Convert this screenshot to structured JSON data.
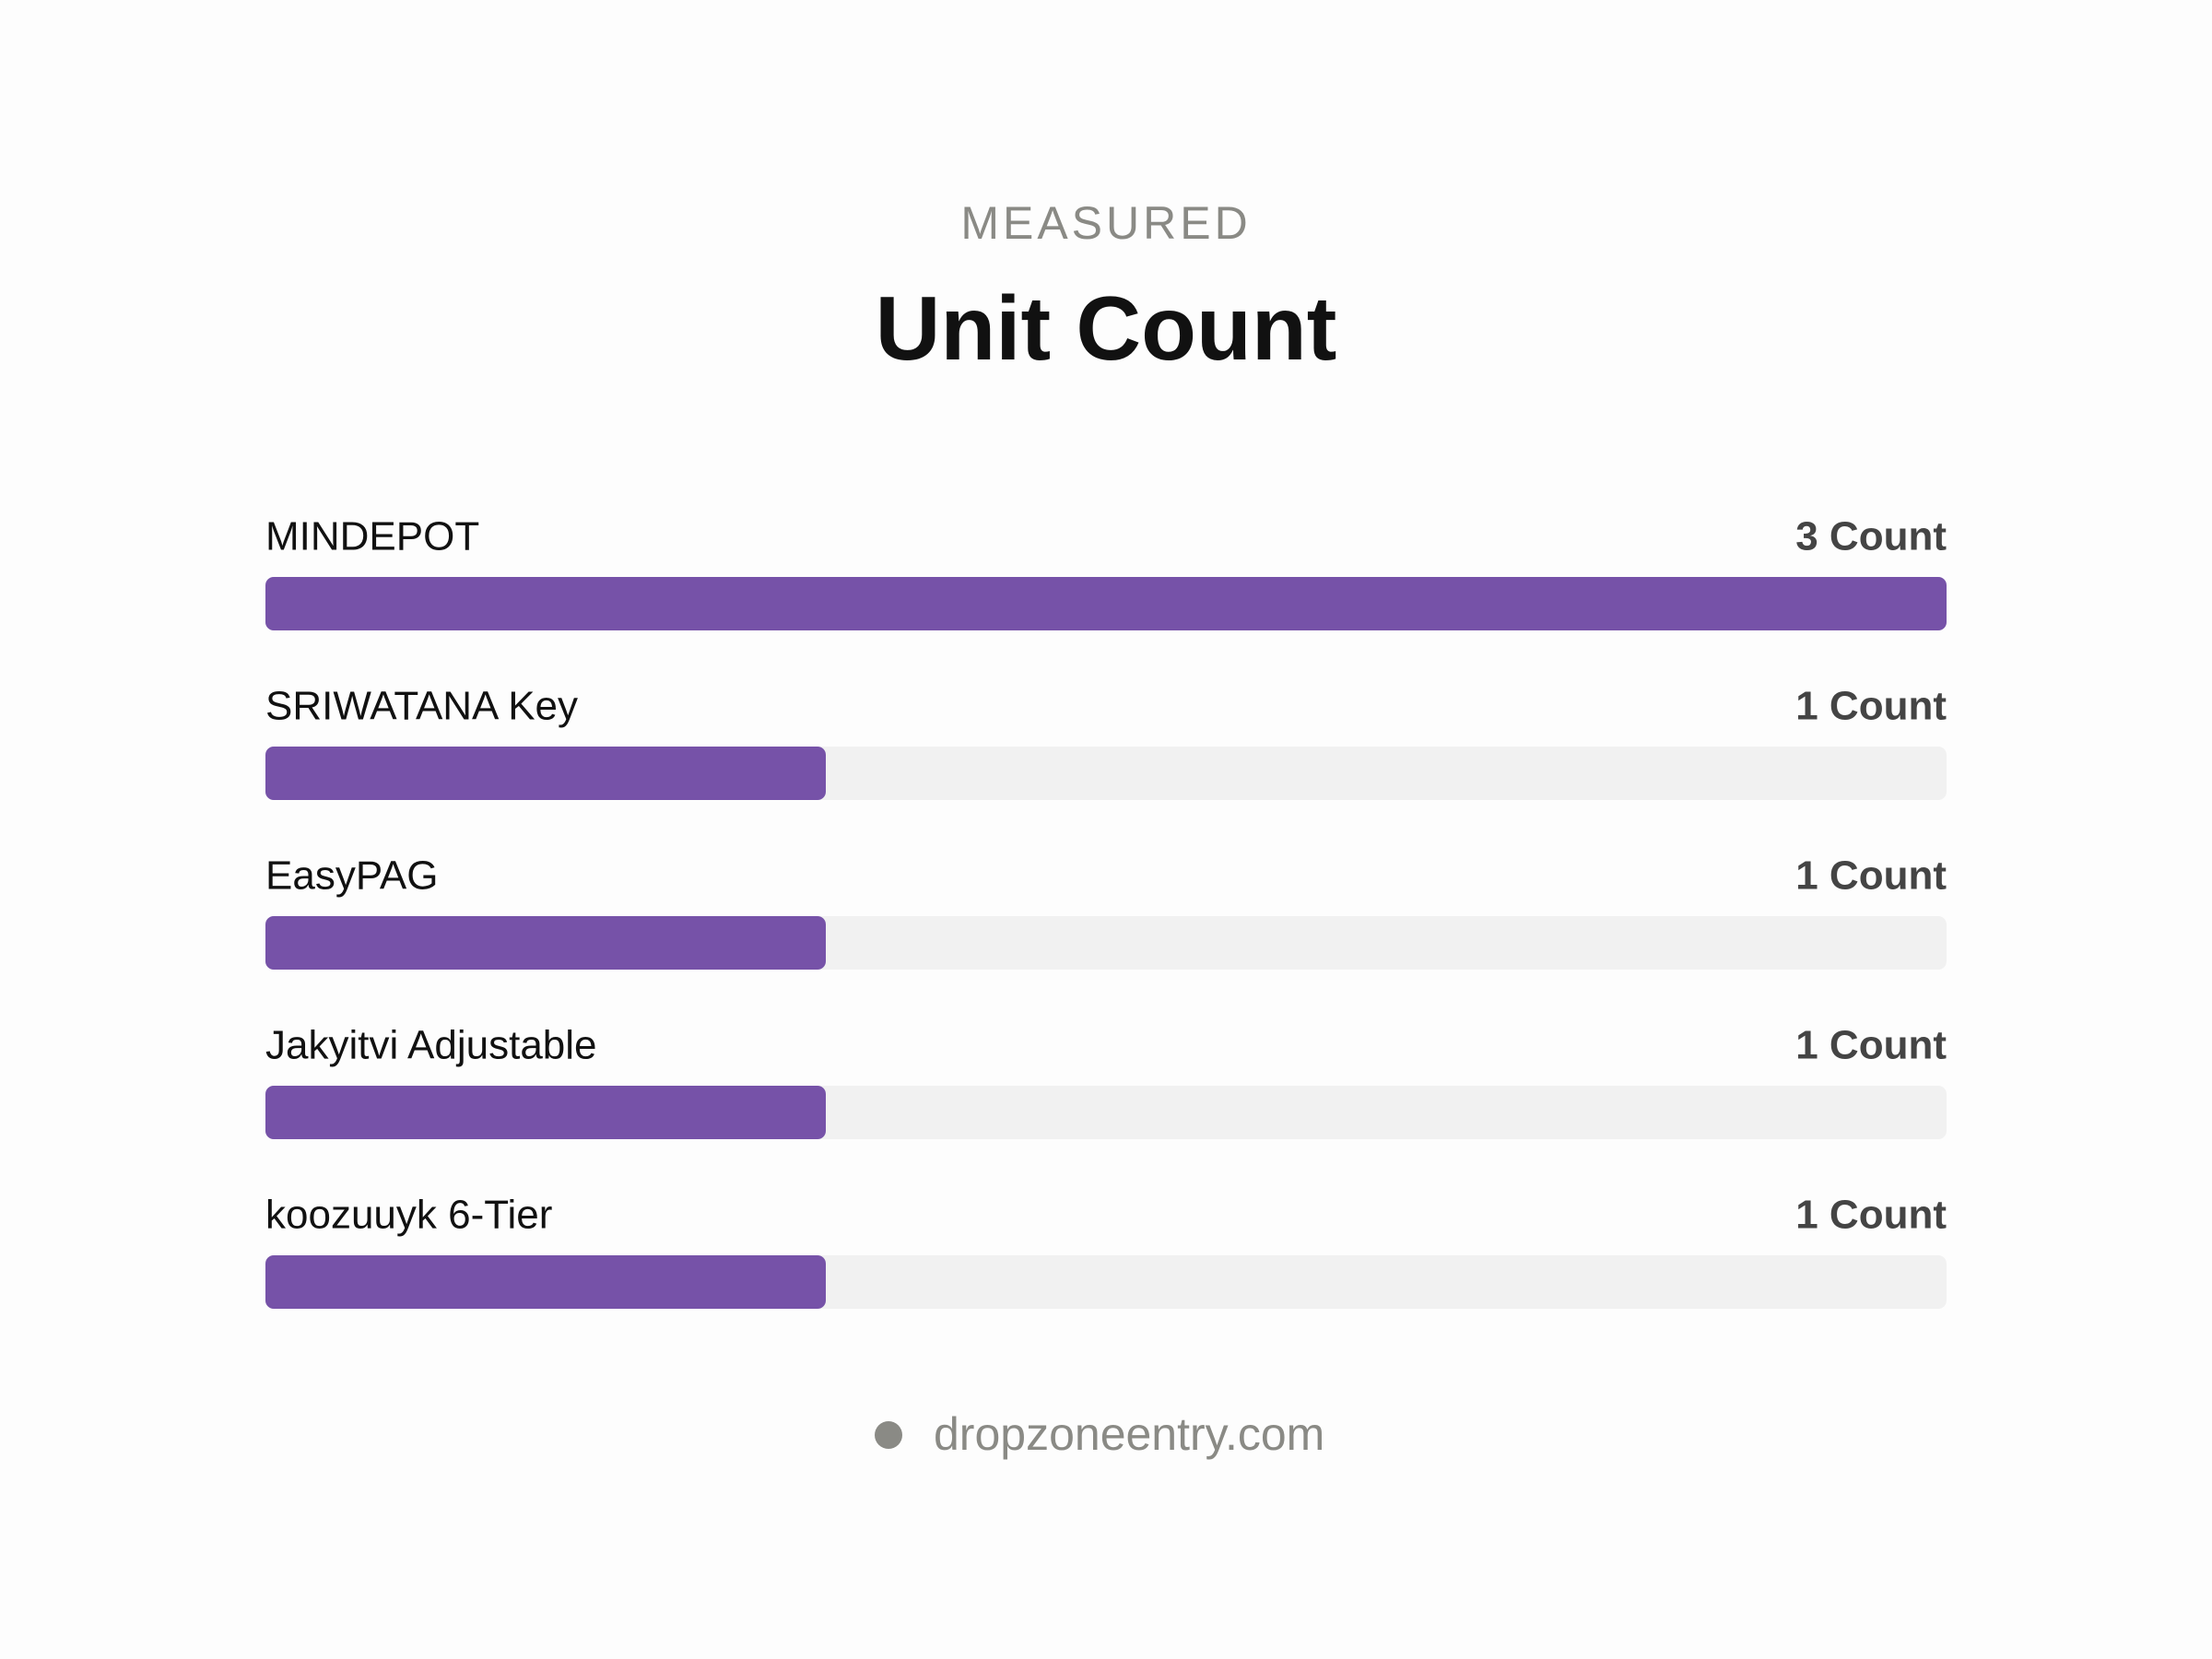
{
  "chart_data": {
    "type": "bar",
    "orientation": "horizontal",
    "subtitle": "MEASURED",
    "title": "Unit Count",
    "categories": [
      "MINDEPOT",
      "SRIWATANA Key",
      "EasyPAG",
      "Jakyitvi Adjustable",
      "koozuuyk 6-Tier"
    ],
    "values": [
      3,
      1,
      1,
      1,
      1
    ],
    "value_labels": [
      "3 Count",
      "1 Count",
      "1 Count",
      "1 Count",
      "1 Count"
    ],
    "color": "#7652a8",
    "source": "dropzoneentry.com"
  }
}
